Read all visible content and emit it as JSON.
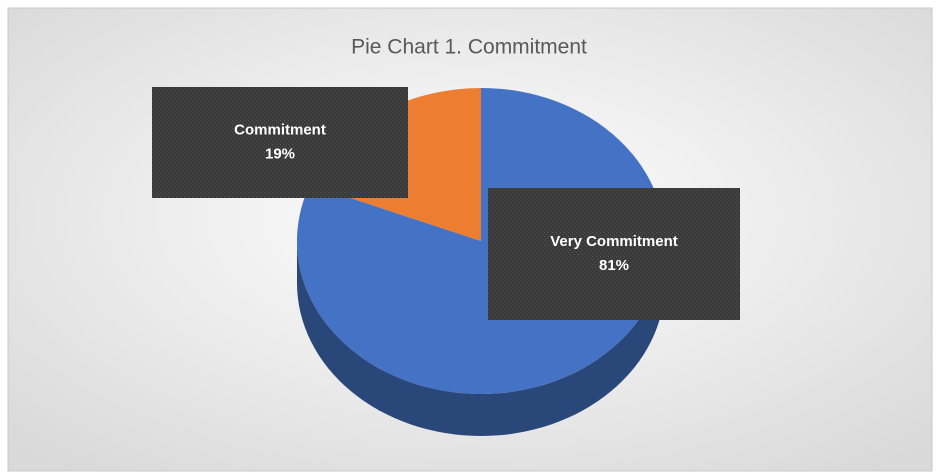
{
  "chart_data": {
    "type": "pie",
    "title": "Pie Chart 1. Commitment",
    "categories": [
      "Very Commitment",
      "Commitment"
    ],
    "values": [
      81,
      19
    ],
    "value_labels": [
      "81%",
      "19%"
    ],
    "colors": [
      "#4472c4",
      "#ed7d31"
    ]
  }
}
